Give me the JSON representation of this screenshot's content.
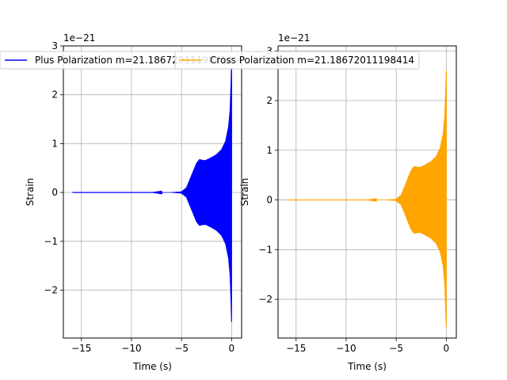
{
  "chart_data": [
    {
      "type": "line",
      "title": "",
      "xlabel": "Time (s)",
      "ylabel": "Strain",
      "offset_text": "1e−21",
      "xlim": [
        -16.8,
        1.0
      ],
      "ylim": [
        -2.98,
        3.0
      ],
      "xticks": [
        -15,
        -10,
        -5,
        0
      ],
      "yticks": [
        -2,
        -1,
        0,
        1,
        2,
        3
      ],
      "xtick_labels": [
        "−15",
        "−10",
        "−5",
        "0"
      ],
      "ytick_labels": [
        "−2",
        "−1",
        "0",
        "1",
        "2",
        "3"
      ],
      "grid": true,
      "legend_position": "top-left",
      "series": [
        {
          "name": "Plus Polarization m=21.18672011198414",
          "color": "#0000ff",
          "x": [
            -15.9,
            -8,
            -6,
            -5,
            -4.5,
            -4,
            -3.5,
            -3.2,
            -3.0,
            -2.6,
            -2,
            -1.5,
            -1,
            -0.6,
            -0.3,
            -0.15,
            -0.05,
            0
          ],
          "envelope": [
            0.0,
            0.0,
            0.005,
            0.02,
            0.1,
            0.35,
            0.6,
            0.68,
            0.67,
            0.66,
            0.72,
            0.78,
            0.88,
            1.05,
            1.35,
            1.7,
            2.3,
            2.7
          ]
        }
      ]
    },
    {
      "type": "line",
      "title": "",
      "xlabel": "Time (s)",
      "ylabel": "Strain",
      "offset_text": "1e−21",
      "xlim": [
        -16.8,
        1.0
      ],
      "ylim": [
        -2.78,
        3.1
      ],
      "xticks": [
        -15,
        -10,
        -5,
        0
      ],
      "yticks": [
        -2,
        -1,
        0,
        1,
        2,
        3
      ],
      "xtick_labels": [
        "−15",
        "−10",
        "−5",
        "0"
      ],
      "ytick_labels": [
        "−2",
        "−1",
        "0",
        "1",
        "2",
        "3"
      ],
      "grid": true,
      "legend_position": "top-left",
      "series": [
        {
          "name": "Cross Polarization m=21.18672011198414",
          "color": "#ffa500",
          "x": [
            -15.9,
            -8,
            -6,
            -5,
            -4.5,
            -4,
            -3.5,
            -3.2,
            -3.0,
            -2.6,
            -2,
            -1.5,
            -1,
            -0.6,
            -0.3,
            -0.15,
            -0.05,
            0
          ],
          "envelope": [
            0.0,
            0.0,
            0.005,
            0.02,
            0.1,
            0.35,
            0.6,
            0.68,
            0.67,
            0.66,
            0.72,
            0.78,
            0.88,
            1.05,
            1.35,
            1.7,
            2.3,
            2.6
          ]
        }
      ]
    }
  ]
}
